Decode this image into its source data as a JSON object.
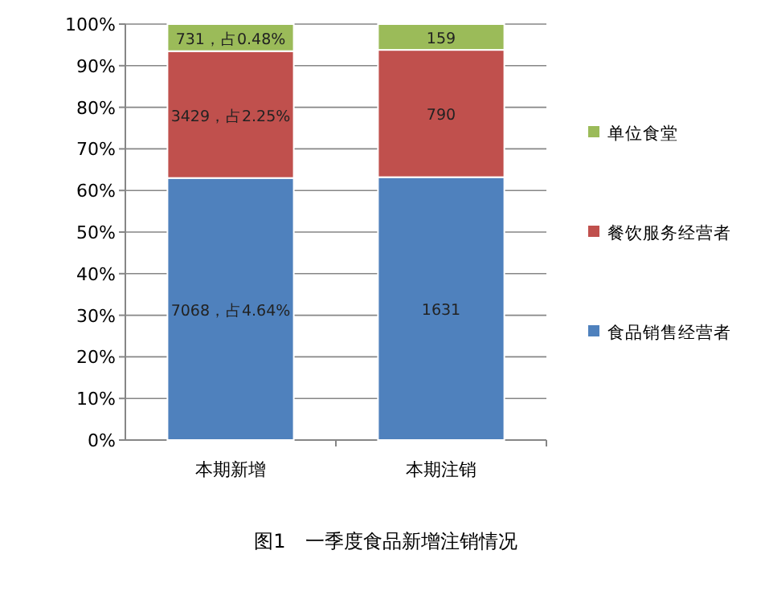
{
  "chart_data": {
    "type": "bar",
    "stacked": true,
    "title": "图1　一季度食品新增注销情况",
    "categories": [
      "本期新增",
      "本期注销"
    ],
    "series": [
      {
        "name": "食品销售经营者",
        "color": "#4f81bd",
        "values": [
          63.0,
          63.2
        ]
      },
      {
        "name": "餐饮服务经营者",
        "color": "#c0504d",
        "values": [
          30.5,
          30.6
        ]
      },
      {
        "name": "单位食堂",
        "color": "#9bbb59",
        "values": [
          6.5,
          6.2
        ]
      }
    ],
    "annotations": [
      "7068，占4.64%",
      "1631",
      "3429，占2.25%",
      "790",
      "731，占0.48%",
      "159"
    ],
    "ylim": [
      0,
      100
    ],
    "yticks": [
      {
        "value": 0,
        "label": "0%"
      },
      {
        "value": 10,
        "label": "10%"
      },
      {
        "value": 20,
        "label": "20%"
      },
      {
        "value": 30,
        "label": "30%"
      },
      {
        "value": 40,
        "label": "40%"
      },
      {
        "value": 50,
        "label": "50%"
      },
      {
        "value": 60,
        "label": "60%"
      },
      {
        "value": 70,
        "label": "70%"
      },
      {
        "value": 80,
        "label": "80%"
      },
      {
        "value": 90,
        "label": "90%"
      },
      {
        "value": 100,
        "label": "100%"
      }
    ],
    "grid": "y",
    "legend": "right"
  }
}
